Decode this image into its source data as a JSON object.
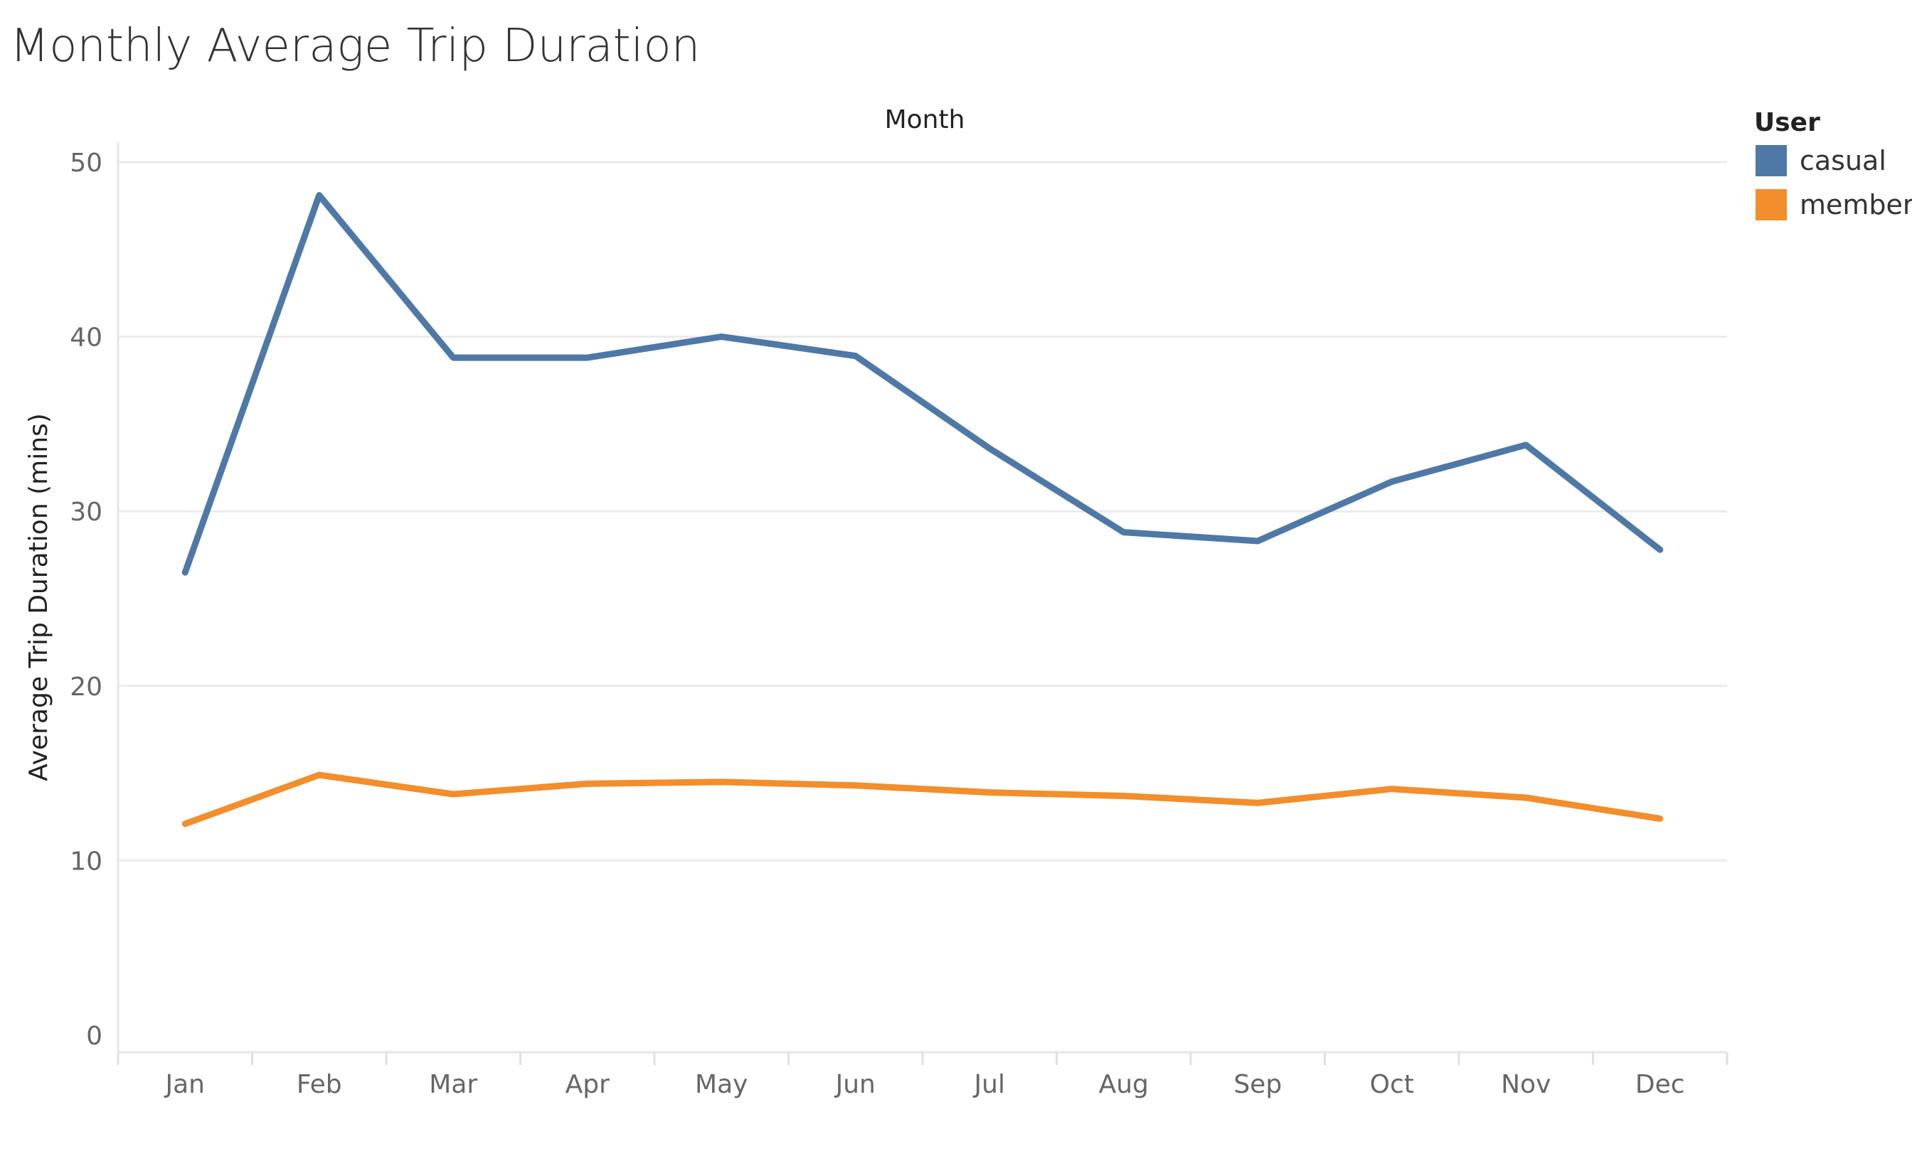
{
  "title": "Monthly Average Trip Duration",
  "chart_data": {
    "type": "line",
    "title": "Monthly Average Trip Duration",
    "xlabel": "Month",
    "ylabel": "Average Trip Duration (mins)",
    "categories": [
      "Jan",
      "Feb",
      "Mar",
      "Apr",
      "May",
      "Jun",
      "Jul",
      "Aug",
      "Sep",
      "Oct",
      "Nov",
      "Dec"
    ],
    "ylim": [
      0,
      50
    ],
    "yticks": [
      "0",
      "10",
      "20",
      "30",
      "40",
      "50"
    ],
    "grid": true,
    "legend": {
      "title": "User",
      "position": "right"
    },
    "series": [
      {
        "name": "casual",
        "color": "#4e79a7",
        "values": [
          26.5,
          48.1,
          38.8,
          38.8,
          40.0,
          38.9,
          33.6,
          28.8,
          28.3,
          31.7,
          33.8,
          27.8
        ]
      },
      {
        "name": "member",
        "color": "#f28e2b",
        "values": [
          12.1,
          14.9,
          13.8,
          14.4,
          14.5,
          14.3,
          13.9,
          13.7,
          13.3,
          14.1,
          13.6,
          12.4
        ]
      }
    ]
  }
}
